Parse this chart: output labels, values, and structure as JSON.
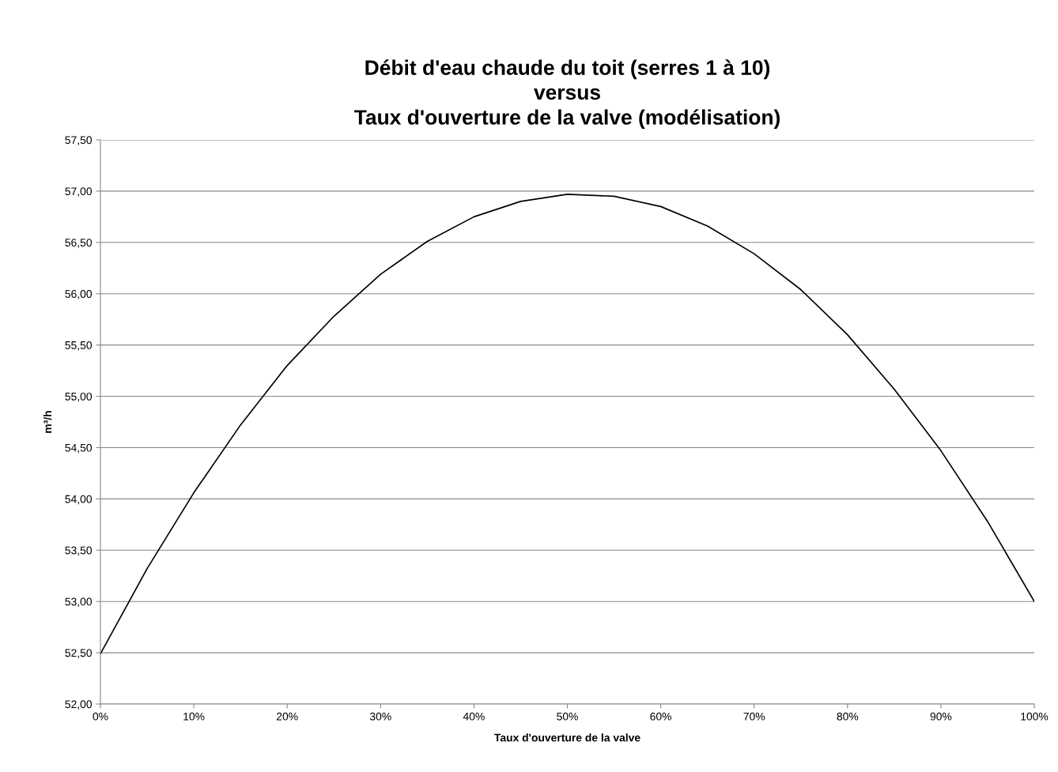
{
  "chart_data": {
    "type": "line",
    "title": "Débit d'eau chaude du toit (serres 1 à 10)\nversus\nTaux d'ouverture de la valve (modélisation)",
    "xlabel": "Taux d'ouverture de la valve",
    "ylabel": "m³/h",
    "x": [
      0,
      5,
      10,
      15,
      20,
      25,
      30,
      35,
      40,
      45,
      50,
      55,
      60,
      65,
      70,
      75,
      80,
      85,
      90,
      95,
      100
    ],
    "series": [
      {
        "color": "#000000",
        "values": [
          52.49,
          53.32,
          54.06,
          54.72,
          55.3,
          55.78,
          56.19,
          56.51,
          56.75,
          56.9,
          56.97,
          56.95,
          56.85,
          56.66,
          56.39,
          56.04,
          55.6,
          55.07,
          54.47,
          53.78,
          53.0
        ]
      }
    ],
    "xlim": [
      0,
      100
    ],
    "xticks": [
      {
        "value": 0,
        "label": "0%"
      },
      {
        "value": 10,
        "label": "10%"
      },
      {
        "value": 20,
        "label": "20%"
      },
      {
        "value": 30,
        "label": "30%"
      },
      {
        "value": 40,
        "label": "40%"
      },
      {
        "value": 50,
        "label": "50%"
      },
      {
        "value": 60,
        "label": "60%"
      },
      {
        "value": 70,
        "label": "70%"
      },
      {
        "value": 80,
        "label": "80%"
      },
      {
        "value": 90,
        "label": "90%"
      },
      {
        "value": 100,
        "label": "100%"
      }
    ],
    "ylim": [
      52,
      57.5
    ],
    "yticks": [
      {
        "value": 52,
        "label": "52,00"
      },
      {
        "value": 52.5,
        "label": "52,50"
      },
      {
        "value": 53,
        "label": "53,00"
      },
      {
        "value": 53.5,
        "label": "53,50"
      },
      {
        "value": 54,
        "label": "54,00"
      },
      {
        "value": 54.5,
        "label": "54,50"
      },
      {
        "value": 55,
        "label": "55,00"
      },
      {
        "value": 55.5,
        "label": "55,50"
      },
      {
        "value": 56,
        "label": "56,00"
      },
      {
        "value": 56.5,
        "label": "56,50"
      },
      {
        "value": 57,
        "label": "57,00"
      },
      {
        "value": 57.5,
        "label": "57,50"
      }
    ],
    "grid": "y",
    "marker": "none",
    "line_style": "solid",
    "legend": false
  }
}
